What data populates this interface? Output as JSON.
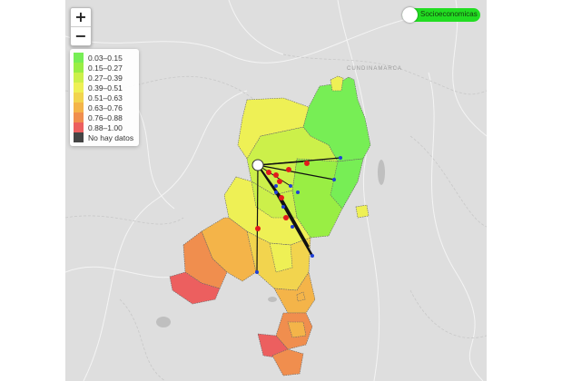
{
  "zoom": {
    "in_label": "+",
    "out_label": "−"
  },
  "toggle": {
    "label": "Socioeconomicas",
    "state": "on"
  },
  "map_label": "CUNDINAMARCA",
  "legend": {
    "items": [
      {
        "label": "0.03–0.15",
        "color": "#77ee55"
      },
      {
        "label": "0.15–0.27",
        "color": "#99ee44"
      },
      {
        "label": "0.27–0.39",
        "color": "#ccf04a"
      },
      {
        "label": "0.39–0.51",
        "color": "#eef055"
      },
      {
        "label": "0.51–0.63",
        "color": "#f2d44e"
      },
      {
        "label": "0.63–0.76",
        "color": "#f4b449"
      },
      {
        "label": "0.76–0.88",
        "color": "#f08e4e"
      },
      {
        "label": "0.88–1.00",
        "color": "#ec5f5f"
      },
      {
        "label": "No hay datos",
        "color": "#444444"
      }
    ]
  }
}
